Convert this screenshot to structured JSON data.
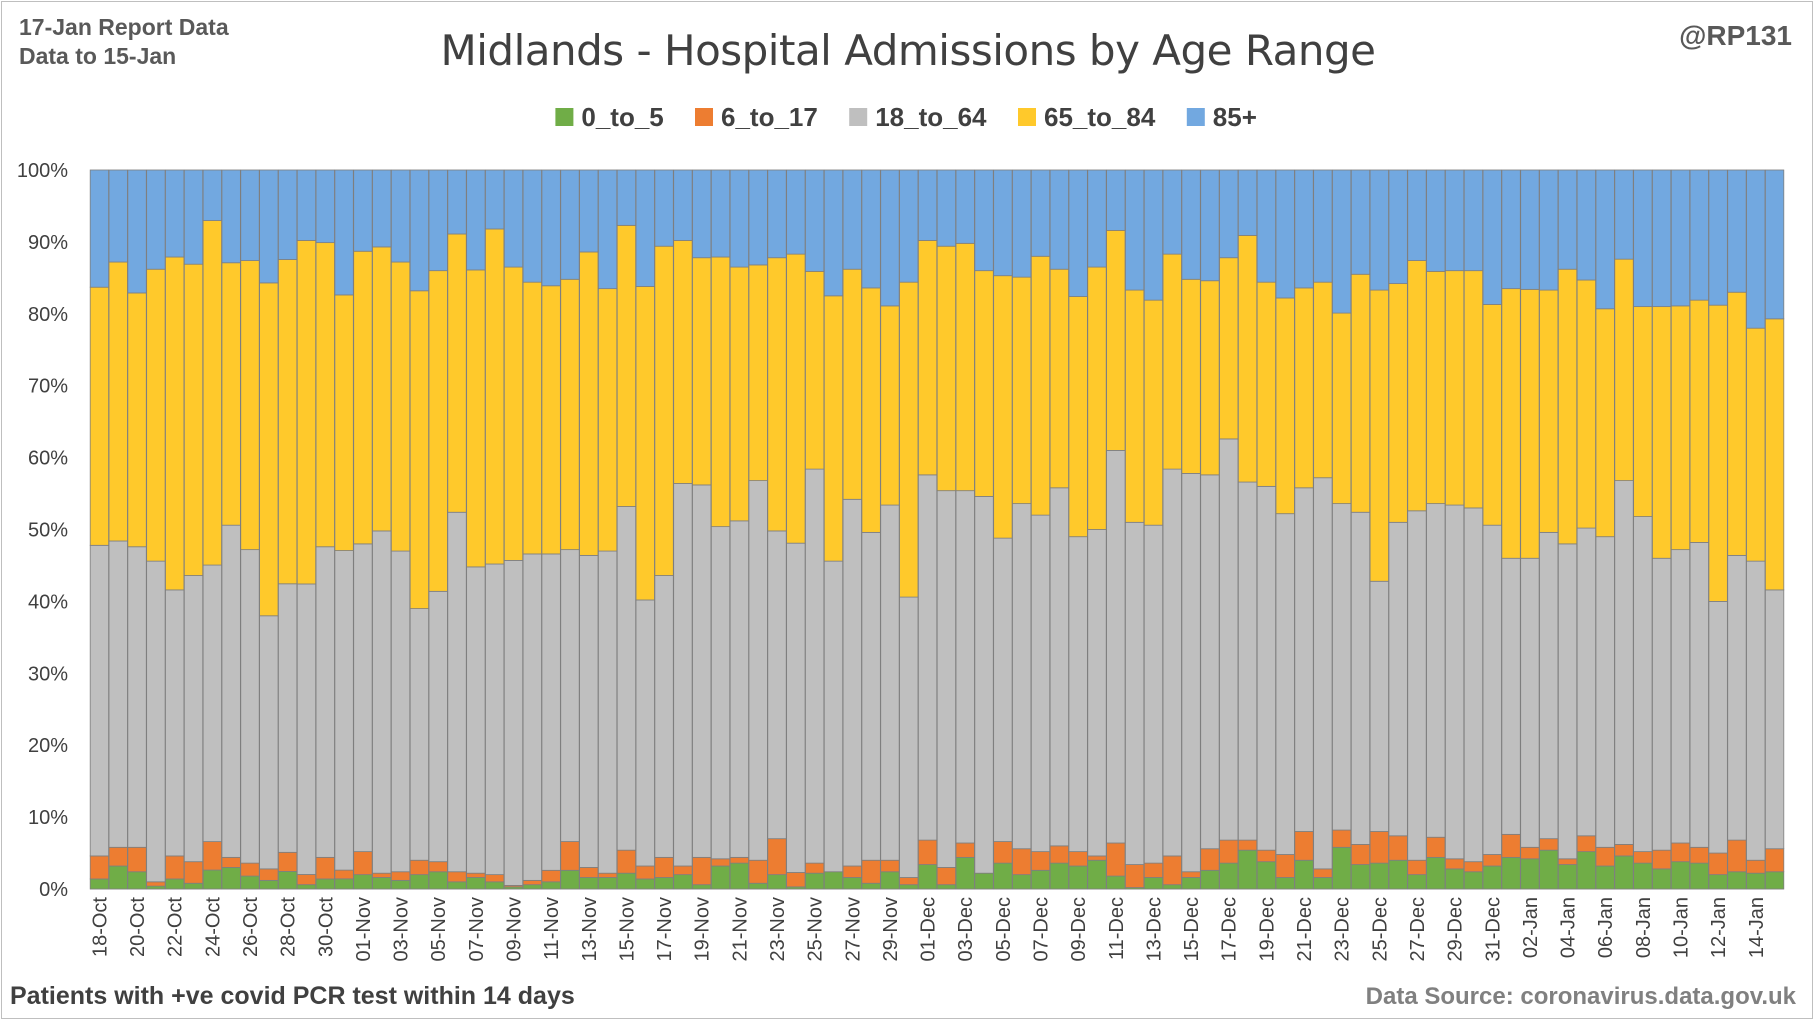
{
  "header": {
    "report": "17-Jan Report Data",
    "data_to": "Data to 15-Jan",
    "handle": "@RP131"
  },
  "footer": {
    "note": "Patients with  +ve covid PCR test within 14 days",
    "source": "Data Source: coronavirus.data.gov.uk"
  },
  "colors": {
    "0_to_5": "#70ad47",
    "6_to_17": "#ed7d31",
    "18_to_64": "#bfbfbf",
    "65_to_84": "#ffc92b",
    "85+": "#72a8e0",
    "bar_edge": "#7f7f7f",
    "grid": "#d9d9d9",
    "axis_text": "#404040"
  },
  "chart_data": {
    "type": "bar",
    "stacked": "percent",
    "title": "Midlands - Hospital Admissions by Age Range",
    "xlabel": "",
    "ylabel": "",
    "ylim": [
      0,
      100
    ],
    "yticks": [
      "0%",
      "10%",
      "20%",
      "30%",
      "40%",
      "50%",
      "60%",
      "70%",
      "80%",
      "90%",
      "100%"
    ],
    "legend_position": "top",
    "grid": true,
    "categories": [
      "18-Oct",
      "19-Oct",
      "20-Oct",
      "21-Oct",
      "22-Oct",
      "23-Oct",
      "24-Oct",
      "25-Oct",
      "26-Oct",
      "27-Oct",
      "28-Oct",
      "29-Oct",
      "30-Oct",
      "31-Oct",
      "01-Nov",
      "02-Nov",
      "03-Nov",
      "04-Nov",
      "05-Nov",
      "06-Nov",
      "07-Nov",
      "08-Nov",
      "09-Nov",
      "10-Nov",
      "11-Nov",
      "12-Nov",
      "13-Nov",
      "14-Nov",
      "15-Nov",
      "16-Nov",
      "17-Nov",
      "18-Nov",
      "19-Nov",
      "20-Nov",
      "21-Nov",
      "22-Nov",
      "23-Nov",
      "24-Nov",
      "25-Nov",
      "26-Nov",
      "27-Nov",
      "28-Nov",
      "29-Nov",
      "30-Nov",
      "01-Dec",
      "02-Dec",
      "03-Dec",
      "04-Dec",
      "05-Dec",
      "06-Dec",
      "07-Dec",
      "08-Dec",
      "09-Dec",
      "10-Dec",
      "11-Dec",
      "12-Dec",
      "13-Dec",
      "14-Dec",
      "15-Dec",
      "16-Dec",
      "17-Dec",
      "18-Dec",
      "19-Dec",
      "20-Dec",
      "21-Dec",
      "22-Dec",
      "23-Dec",
      "24-Dec",
      "25-Dec",
      "26-Dec",
      "27-Dec",
      "28-Dec",
      "29-Dec",
      "30-Dec",
      "31-Dec",
      "01-Jan",
      "02-Jan",
      "03-Jan",
      "04-Jan",
      "05-Jan",
      "06-Jan",
      "07-Jan",
      "08-Jan",
      "09-Jan",
      "10-Jan",
      "11-Jan",
      "12-Jan",
      "13-Jan",
      "14-Jan",
      "15-Jan"
    ],
    "tick_labels": [
      "18-Oct",
      "20-Oct",
      "22-Oct",
      "24-Oct",
      "26-Oct",
      "28-Oct",
      "30-Oct",
      "01-Nov",
      "03-Nov",
      "05-Nov",
      "07-Nov",
      "09-Nov",
      "11-Nov",
      "13-Nov",
      "15-Nov",
      "17-Nov",
      "19-Nov",
      "21-Nov",
      "23-Nov",
      "25-Nov",
      "27-Nov",
      "29-Nov",
      "01-Dec",
      "03-Dec",
      "05-Dec",
      "07-Dec",
      "09-Dec",
      "11-Dec",
      "13-Dec",
      "15-Dec",
      "17-Dec",
      "19-Dec",
      "21-Dec",
      "23-Dec",
      "25-Dec",
      "27-Dec",
      "29-Dec",
      "31-Dec",
      "02-Jan",
      "04-Jan",
      "06-Jan",
      "08-Jan",
      "10-Jan",
      "12-Jan",
      "14-Jan"
    ],
    "series": [
      {
        "name": "0_to_5",
        "values": [
          1.4,
          3.2,
          2.4,
          0.4,
          1.4,
          0.8,
          2.4,
          3.0,
          1.8,
          1.2,
          2.4,
          0.6,
          1.4,
          1.4,
          2.0,
          1.6,
          1.2,
          2.0,
          2.4,
          1.0,
          1.6,
          1.0,
          0.3,
          0.6,
          1.0,
          2.6,
          1.6,
          1.6,
          2.2,
          1.4,
          1.6,
          2.0,
          0.6,
          3.2,
          3.6,
          0.8,
          2.0,
          0.3,
          2.2,
          2.4,
          1.6,
          0.8,
          2.4,
          0.6,
          3.4,
          0.6,
          4.4,
          2.2,
          3.6,
          2.0,
          2.6,
          3.6,
          3.2,
          4.0,
          1.8,
          0.2,
          1.6,
          0.6,
          1.6,
          2.6,
          3.6,
          5.4,
          3.8,
          1.6,
          4.0,
          1.6,
          5.8,
          3.4,
          3.6,
          4.0,
          2.0,
          4.4,
          2.8,
          2.4,
          3.2,
          4.4,
          4.2,
          5.4,
          3.4,
          5.2,
          3.2,
          4.6,
          3.6,
          2.8,
          3.8,
          3.6,
          2.0,
          2.4,
          2.2,
          2.4
        ]
      },
      {
        "name": "6_to_17",
        "values": [
          3.2,
          2.6,
          3.4,
          0.6,
          3.2,
          3.0,
          3.6,
          1.4,
          1.8,
          1.6,
          2.6,
          1.4,
          3.0,
          1.2,
          3.2,
          0.6,
          1.2,
          2.0,
          1.4,
          1.4,
          0.6,
          1.0,
          0.2,
          0.6,
          1.6,
          4.0,
          1.4,
          0.6,
          3.2,
          1.8,
          2.8,
          1.2,
          3.8,
          1.0,
          0.8,
          3.2,
          5.0,
          2.0,
          1.4,
          0.0,
          1.6,
          3.2,
          1.6,
          1.0,
          3.4,
          2.4,
          2.0,
          0.0,
          3.0,
          3.6,
          2.6,
          2.4,
          2.0,
          0.6,
          4.6,
          3.2,
          2.0,
          4.0,
          0.8,
          3.0,
          3.2,
          1.4,
          1.6,
          3.2,
          4.0,
          1.2,
          2.4,
          2.8,
          4.4,
          3.4,
          2.0,
          2.8,
          1.4,
          1.4,
          1.6,
          3.2,
          1.6,
          1.6,
          0.8,
          2.2,
          2.6,
          1.6,
          1.6,
          2.6,
          2.6,
          2.2,
          3.0,
          4.4,
          1.8,
          3.2
        ]
      },
      {
        "name": "18_to_64",
        "values": [
          43.2,
          42.6,
          41.8,
          44.6,
          37.0,
          39.8,
          35.0,
          46.2,
          43.6,
          35.2,
          36.6,
          40.0,
          43.2,
          44.0,
          42.8,
          47.6,
          44.6,
          35.0,
          37.6,
          50.0,
          42.6,
          43.2,
          45.2,
          45.4,
          44.0,
          40.6,
          43.4,
          44.8,
          47.8,
          37.0,
          39.2,
          53.2,
          51.8,
          46.2,
          46.8,
          52.8,
          42.8,
          45.8,
          54.8,
          43.2,
          51.0,
          45.6,
          49.4,
          39.0,
          50.8,
          52.4,
          49.0,
          52.4,
          42.2,
          48.0,
          46.8,
          49.8,
          43.8,
          45.4,
          54.6,
          47.6,
          47.0,
          53.8,
          55.4,
          52.0,
          55.8,
          49.8,
          50.6,
          47.4,
          47.8,
          54.4,
          45.4,
          46.2,
          34.8,
          43.6,
          48.6,
          46.4,
          49.2,
          49.2,
          45.8,
          38.4,
          40.2,
          42.6,
          43.8,
          42.8,
          43.2,
          50.6,
          46.6,
          40.6,
          40.8,
          42.4,
          35.0,
          39.6,
          41.6,
          36.0
        ]
      },
      {
        "name": "65_to_84",
        "values": [
          35.9,
          38.8,
          35.3,
          40.6,
          46.3,
          43.3,
          43.6,
          36.5,
          40.2,
          46.3,
          44.2,
          47.3,
          42.3,
          35.2,
          40.7,
          39.5,
          40.2,
          44.2,
          44.6,
          38.7,
          41.3,
          46.6,
          40.8,
          37.8,
          37.3,
          37.6,
          42.2,
          36.5,
          39.1,
          43.6,
          45.8,
          33.8,
          31.6,
          37.5,
          35.3,
          30.0,
          38.0,
          40.2,
          27.5,
          36.9,
          32.0,
          34.0,
          27.7,
          43.8,
          32.6,
          34.0,
          34.4,
          31.4,
          36.5,
          31.5,
          36.0,
          30.4,
          33.4,
          36.5,
          30.6,
          32.3,
          31.3,
          29.9,
          27.0,
          27.0,
          25.2,
          34.3,
          28.4,
          30.0,
          27.8,
          27.2,
          26.5,
          33.1,
          40.5,
          33.2,
          34.8,
          32.3,
          32.6,
          33.0,
          30.7,
          37.5,
          37.4,
          33.7,
          38.2,
          34.5,
          31.7,
          30.8,
          29.2,
          35.0,
          33.9,
          33.7,
          41.2,
          36.6,
          32.4,
          37.7
        ]
      },
      {
        "name": "85+",
        "values": [
          16.3,
          12.8,
          17.1,
          13.8,
          12.1,
          13.1,
          6.4,
          12.9,
          12.6,
          15.7,
          12.2,
          9.7,
          10.1,
          17.2,
          11.3,
          10.7,
          12.8,
          16.8,
          14.0,
          8.9,
          13.9,
          8.2,
          13.5,
          15.6,
          16.1,
          15.2,
          11.4,
          16.5,
          7.7,
          16.2,
          10.6,
          9.8,
          12.2,
          12.1,
          13.5,
          13.2,
          12.2,
          11.7,
          14.1,
          17.5,
          13.8,
          16.4,
          18.9,
          15.6,
          9.8,
          10.6,
          10.2,
          14.0,
          14.7,
          14.9,
          12.0,
          13.8,
          17.6,
          13.5,
          8.4,
          16.7,
          18.1,
          11.7,
          15.2,
          15.4,
          12.2,
          9.1,
          15.6,
          17.8,
          16.4,
          15.6,
          19.9,
          14.5,
          16.7,
          15.8,
          12.6,
          14.1,
          14.0,
          14.0,
          18.7,
          16.5,
          16.6,
          16.7,
          13.8,
          15.3,
          19.3,
          12.4,
          19.0,
          19.0,
          18.9,
          18.1,
          18.8,
          17.0,
          22.0,
          20.7
        ]
      }
    ]
  }
}
